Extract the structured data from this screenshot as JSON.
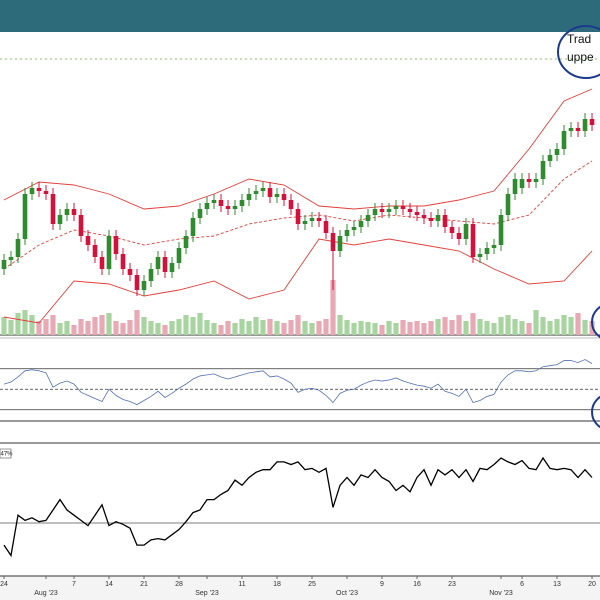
{
  "chart_data": {
    "type": "candlestick",
    "xlim": [
      -0.57,
      85.14
    ],
    "ylim": [
      0,
      100
    ],
    "xticks": [
      {
        "value": 0,
        "label": "24"
      },
      {
        "value": 6,
        "label": "Aug '23"
      },
      {
        "value": 10,
        "label": "7"
      },
      {
        "value": 15,
        "label": "14"
      },
      {
        "value": 20,
        "label": "21"
      },
      {
        "value": 25,
        "label": "28"
      },
      {
        "value": 29,
        "label": "Sep '23"
      },
      {
        "value": 34,
        "label": "11"
      },
      {
        "value": 39,
        "label": "18"
      },
      {
        "value": 44,
        "label": "25"
      },
      {
        "value": 49,
        "label": "Oct '23"
      },
      {
        "value": 54,
        "label": "9"
      },
      {
        "value": 59,
        "label": "16"
      },
      {
        "value": 64,
        "label": "23"
      },
      {
        "value": 71,
        "label": "Nov '23"
      },
      {
        "value": 74,
        "label": "6"
      },
      {
        "value": 79,
        "label": "13"
      },
      {
        "value": 84,
        "label": "20"
      }
    ],
    "x": [
      0,
      1,
      2,
      3,
      4,
      5,
      6,
      7,
      8,
      9,
      10,
      11,
      12,
      13,
      14,
      15,
      16,
      17,
      18,
      19,
      20,
      21,
      22,
      23,
      24,
      25,
      26,
      27,
      28,
      29,
      30,
      31,
      32,
      33,
      34,
      35,
      36,
      37,
      38,
      39,
      40,
      41,
      42,
      43,
      44,
      45,
      46,
      47,
      48,
      49,
      50,
      51,
      52,
      53,
      54,
      55,
      56,
      57,
      58,
      59,
      60,
      61,
      62,
      63,
      64,
      65,
      66,
      67,
      68,
      69,
      70,
      71,
      72,
      73,
      74,
      75,
      76,
      77,
      78,
      79,
      80,
      81,
      82,
      83,
      84
    ],
    "open": [
      22,
      25,
      26,
      32,
      47,
      49,
      48,
      47,
      37,
      40,
      42,
      40,
      33,
      30,
      26,
      22,
      33,
      27,
      22,
      20,
      15,
      18,
      22,
      26,
      21,
      24,
      29,
      33,
      39,
      42,
      44,
      45,
      43,
      42,
      43,
      45,
      47,
      48,
      49,
      46,
      47,
      45,
      42,
      37,
      38,
      39,
      38,
      34,
      28,
      33,
      35,
      36,
      38,
      40,
      42,
      41,
      42,
      43,
      42,
      41,
      40,
      39,
      38,
      40,
      36,
      34,
      32,
      37,
      26,
      27,
      29,
      30,
      40,
      47,
      49,
      52,
      51,
      52,
      58,
      60,
      62,
      68,
      69,
      68,
      72
    ],
    "high": [
      27,
      28,
      34,
      49,
      51,
      51,
      50,
      49,
      42,
      44,
      44,
      42,
      35,
      32,
      28,
      35,
      35,
      29,
      24,
      22,
      20,
      24,
      28,
      28,
      26,
      31,
      35,
      41,
      44,
      46,
      47,
      47,
      45,
      45,
      47,
      49,
      50,
      51,
      51,
      49,
      49,
      47,
      44,
      40,
      41,
      41,
      40,
      36,
      35,
      37,
      38,
      40,
      42,
      44,
      44,
      44,
      45,
      45,
      44,
      43,
      42,
      41,
      42,
      42,
      38,
      36,
      39,
      39,
      29,
      31,
      32,
      42,
      49,
      54,
      54,
      54,
      54,
      60,
      62,
      64,
      70,
      71,
      71,
      74,
      74
    ],
    "low": [
      20,
      23,
      24,
      30,
      45,
      46,
      45,
      35,
      35,
      38,
      38,
      31,
      28,
      24,
      20,
      20,
      25,
      20,
      18,
      13,
      13,
      16,
      20,
      19,
      19,
      22,
      27,
      31,
      37,
      40,
      42,
      41,
      40,
      40,
      41,
      43,
      45,
      46,
      44,
      44,
      43,
      40,
      35,
      35,
      36,
      36,
      32,
      15,
      26,
      31,
      33,
      34,
      36,
      38,
      39,
      39,
      40,
      40,
      39,
      38,
      37,
      36,
      36,
      34,
      32,
      30,
      30,
      24,
      24,
      25,
      27,
      28,
      38,
      45,
      47,
      49,
      49,
      50,
      56,
      58,
      60,
      66,
      66,
      66,
      68
    ],
    "close": [
      25,
      26,
      32,
      47,
      49,
      48,
      47,
      37,
      40,
      42,
      40,
      33,
      30,
      26,
      22,
      33,
      27,
      22,
      20,
      15,
      18,
      22,
      26,
      21,
      24,
      29,
      33,
      39,
      42,
      44,
      45,
      43,
      42,
      43,
      45,
      47,
      48,
      49,
      46,
      47,
      45,
      42,
      37,
      38,
      39,
      38,
      34,
      28,
      33,
      35,
      36,
      38,
      40,
      42,
      41,
      42,
      43,
      42,
      41,
      40,
      39,
      38,
      40,
      36,
      34,
      32,
      37,
      26,
      27,
      29,
      30,
      40,
      47,
      52,
      52,
      51,
      52,
      58,
      60,
      62,
      68,
      69,
      68,
      72,
      70
    ],
    "up_color": "#2e8b2e",
    "down_color": "#d4113c",
    "resistance": {
      "value": 92,
      "color": "#8cc06e"
    },
    "bands": {
      "color": "#e0403a",
      "x": [
        0,
        5,
        10,
        15,
        20,
        25,
        30,
        35,
        40,
        45,
        50,
        55,
        60,
        65,
        70,
        75,
        80,
        84
      ],
      "upper": [
        45,
        51,
        50,
        47,
        42,
        43,
        47,
        52,
        50,
        43,
        42,
        43,
        43,
        45,
        48,
        62,
        78,
        82
      ],
      "middle": [
        22,
        30,
        35,
        33,
        30,
        32,
        33,
        37,
        39,
        40,
        38,
        40,
        39,
        38,
        37,
        40,
        52,
        58
      ],
      "lower": [
        6,
        4,
        18,
        17,
        13,
        15,
        18,
        12,
        15,
        32,
        30,
        32,
        30,
        28,
        22,
        17,
        18,
        28
      ]
    },
    "volume": {
      "ylim": [
        0,
        100
      ],
      "up_color": "#a8d4a0",
      "down_color": "#e8a8b4",
      "values": [
        18,
        15,
        22,
        25,
        20,
        14,
        16,
        20,
        12,
        14,
        10,
        16,
        14,
        18,
        20,
        22,
        14,
        12,
        15,
        25,
        18,
        14,
        12,
        10,
        14,
        16,
        20,
        18,
        22,
        15,
        12,
        10,
        14,
        12,
        16,
        14,
        18,
        15,
        16,
        14,
        12,
        15,
        20,
        14,
        12,
        14,
        16,
        55,
        20,
        15,
        12,
        14,
        13,
        12,
        10,
        14,
        12,
        15,
        13,
        14,
        12,
        14,
        16,
        18,
        15,
        20,
        14,
        22,
        16,
        14,
        12,
        18,
        20,
        16,
        14,
        12,
        25,
        18,
        14,
        16,
        20,
        18,
        22,
        15,
        14
      ]
    },
    "rsi": {
      "ylim": [
        20,
        100
      ],
      "levels": [
        30,
        50,
        70
      ],
      "color": "#5570b0",
      "values": [
        55,
        57,
        62,
        68,
        69,
        68,
        66,
        52,
        56,
        58,
        55,
        47,
        44,
        41,
        38,
        50,
        44,
        40,
        38,
        35,
        39,
        43,
        48,
        42,
        46,
        51,
        55,
        60,
        63,
        64,
        65,
        62,
        60,
        62,
        64,
        66,
        67,
        68,
        62,
        63,
        60,
        56,
        47,
        50,
        51,
        49,
        44,
        37,
        46,
        49,
        50,
        54,
        57,
        59,
        58,
        59,
        61,
        58,
        56,
        54,
        53,
        51,
        55,
        48,
        46,
        43,
        50,
        37,
        39,
        43,
        45,
        57,
        64,
        68,
        68,
        67,
        68,
        72,
        73,
        74,
        78,
        78,
        76,
        79,
        75
      ]
    },
    "rs": {
      "ylim": [
        0,
        100
      ],
      "level": 40,
      "label": "47%",
      "color": "#000000",
      "values": [
        23,
        15,
        46,
        42,
        44,
        41,
        42,
        50,
        58,
        50,
        46,
        42,
        38,
        46,
        54,
        38,
        41,
        39,
        36,
        23,
        23,
        27,
        28,
        27,
        31,
        35,
        41,
        48,
        50,
        58,
        58,
        62,
        65,
        73,
        69,
        75,
        79,
        81,
        81,
        87,
        87,
        85,
        87,
        81,
        82,
        79,
        82,
        52,
        69,
        75,
        69,
        77,
        75,
        81,
        75,
        72,
        65,
        69,
        64,
        75,
        81,
        69,
        81,
        77,
        81,
        75,
        81,
        72,
        82,
        81,
        85,
        90,
        87,
        85,
        88,
        82,
        81,
        90,
        82,
        81,
        82,
        81,
        75,
        81,
        75
      ]
    },
    "annotation": [
      "Trad",
      "uppe"
    ]
  }
}
